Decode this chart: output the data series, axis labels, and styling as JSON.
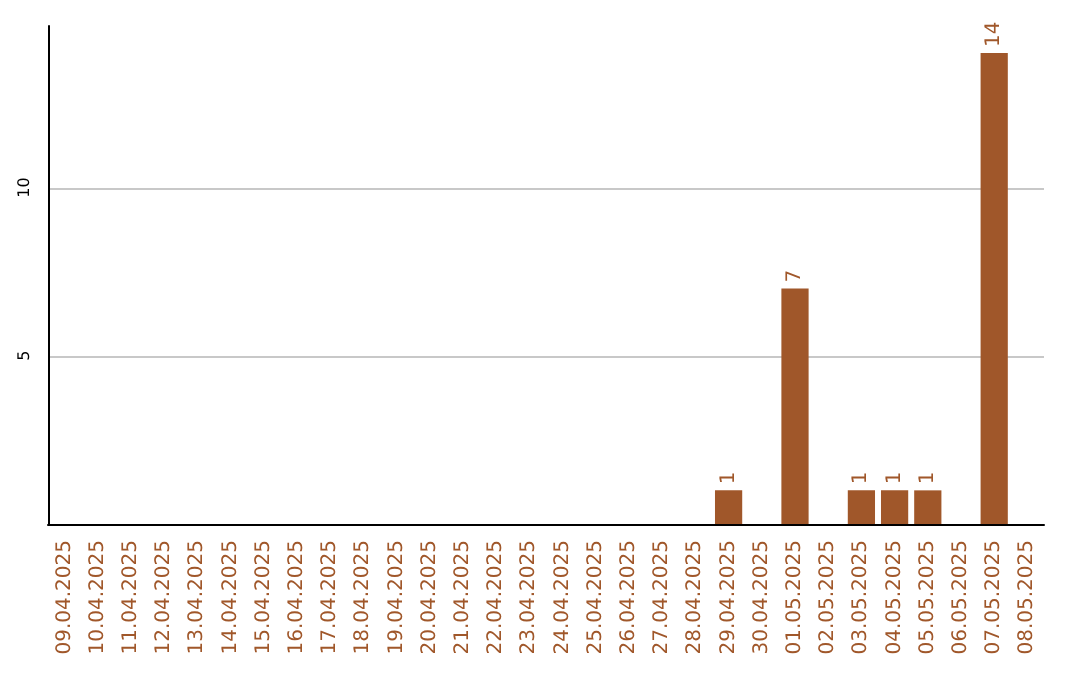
{
  "chart_data": {
    "type": "bar",
    "categories": [
      "09.04.2025",
      "10.04.2025",
      "11.04.2025",
      "12.04.2025",
      "13.04.2025",
      "14.04.2025",
      "15.04.2025",
      "16.04.2025",
      "17.04.2025",
      "18.04.2025",
      "19.04.2025",
      "20.04.2025",
      "21.04.2025",
      "22.04.2025",
      "23.04.2025",
      "24.04.2025",
      "25.04.2025",
      "26.04.2025",
      "27.04.2025",
      "28.04.2025",
      "29.04.2025",
      "30.04.2025",
      "01.05.2025",
      "02.05.2025",
      "03.05.2025",
      "04.05.2025",
      "05.05.2025",
      "06.05.2025",
      "07.05.2025",
      "08.05.2025"
    ],
    "values": [
      0,
      0,
      0,
      0,
      0,
      0,
      0,
      0,
      0,
      0,
      0,
      0,
      0,
      0,
      0,
      0,
      0,
      0,
      0,
      0,
      1,
      0,
      7,
      0,
      1,
      1,
      1,
      0,
      14,
      0
    ],
    "value_labels": [
      null,
      null,
      null,
      null,
      null,
      null,
      null,
      null,
      null,
      null,
      null,
      null,
      null,
      null,
      null,
      null,
      null,
      null,
      null,
      null,
      "1",
      null,
      "7",
      null,
      "1",
      "1",
      "1",
      null,
      "14",
      null
    ],
    "color": "#a0572a",
    "ylim": [
      0,
      14.8
    ],
    "yticks": [
      5,
      10
    ],
    "grid": "y"
  }
}
